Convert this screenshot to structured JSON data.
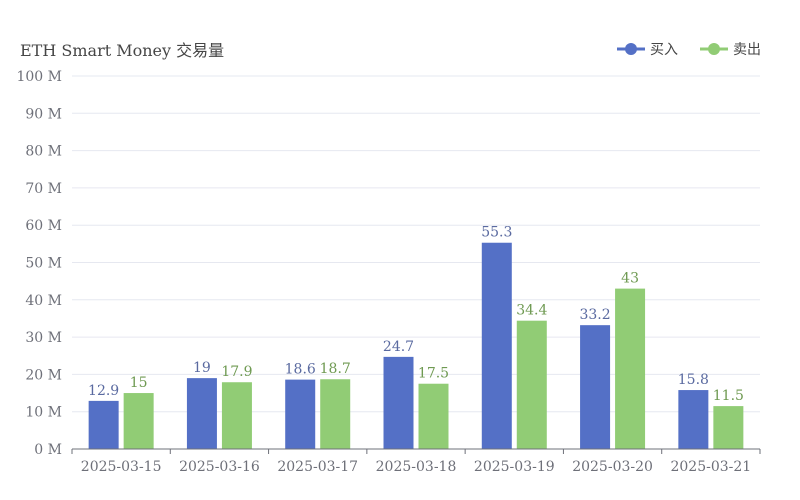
{
  "colors": {
    "buy": "#5470c6",
    "sell": "#91cc75"
  },
  "chart_data": {
    "type": "bar",
    "title": "ETH Smart Money 交易量",
    "categories": [
      "2025-03-15",
      "2025-03-16",
      "2025-03-17",
      "2025-03-18",
      "2025-03-19",
      "2025-03-20",
      "2025-03-21"
    ],
    "series": [
      {
        "name": "买入",
        "values": [
          12.9,
          19,
          18.6,
          24.7,
          55.3,
          33.2,
          15.8
        ]
      },
      {
        "name": "卖出",
        "values": [
          15,
          17.9,
          18.7,
          17.5,
          34.4,
          43,
          11.5
        ]
      }
    ],
    "value_labels": [
      [
        "12.9",
        "19",
        "18.6",
        "24.7",
        "55.3",
        "33.2",
        "15.8"
      ],
      [
        "15",
        "17.9",
        "18.7",
        "17.5",
        "34.4",
        "43",
        "11.5"
      ]
    ],
    "ylim": [
      0,
      100
    ],
    "y_ticks": [
      0,
      10,
      20,
      30,
      40,
      50,
      60,
      70,
      80,
      90,
      100
    ],
    "y_tick_labels": [
      "0 M",
      "10 M",
      "20 M",
      "30 M",
      "40 M",
      "50 M",
      "60 M",
      "70 M",
      "80 M",
      "90 M",
      "100 M"
    ],
    "grid": true,
    "legend_position": "top-right"
  }
}
